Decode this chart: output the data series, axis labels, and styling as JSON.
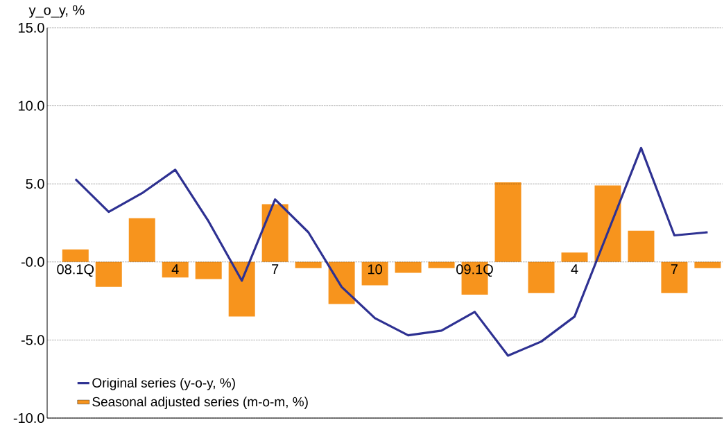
{
  "chart_data": {
    "type": "bar",
    "ylabel": "y_o_y, %",
    "categories": [
      "08.1Q",
      null,
      null,
      "4",
      null,
      null,
      "7",
      null,
      null,
      "10",
      null,
      null,
      "09.1Q",
      null,
      null,
      "4",
      null,
      null,
      "7",
      null
    ],
    "series": [
      {
        "name": "Original series (y-o-y, %)",
        "type": "line",
        "color": "#2e3192",
        "values": [
          5.3,
          3.2,
          4.4,
          5.9,
          2.6,
          -1.2,
          4.0,
          1.9,
          -1.6,
          -3.6,
          -4.7,
          -4.4,
          -3.2,
          -6.0,
          -5.1,
          -3.5,
          1.9,
          7.3,
          1.7,
          1.9
        ]
      },
      {
        "name": "Seasonal adjusted series (m-o-m, %)",
        "color": "#f7941d",
        "values": [
          0.8,
          -1.6,
          2.8,
          -1.0,
          -1.1,
          -3.5,
          3.7,
          -0.4,
          -2.7,
          -1.5,
          -0.7,
          -0.4,
          -2.1,
          5.1,
          -2.0,
          0.6,
          4.9,
          2.0,
          -2.0,
          -0.4
        ]
      }
    ],
    "ylim": [
      -10,
      15
    ],
    "yticks": [
      {
        "value": -10,
        "label": "-10.0"
      },
      {
        "value": -5,
        "label": "-5.0"
      },
      {
        "value": 0,
        "label": "-0.0"
      },
      {
        "value": 5,
        "label": "5.0"
      },
      {
        "value": 10,
        "label": "10.0"
      },
      {
        "value": 15,
        "label": "15.0"
      }
    ],
    "grid": "y",
    "legend": "bottom left"
  }
}
